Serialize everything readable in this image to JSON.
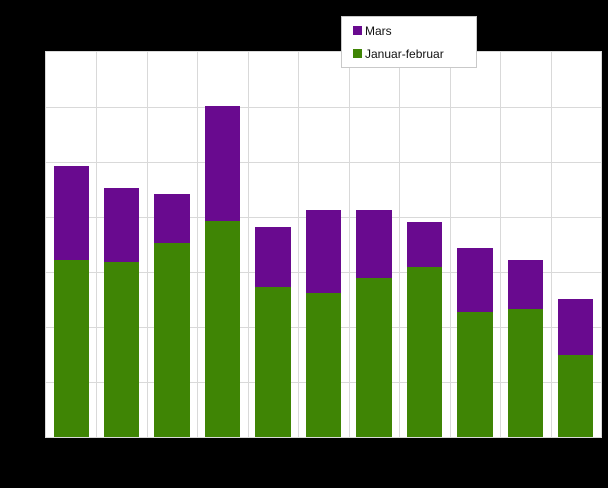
{
  "chart": {
    "background_color": "#000000",
    "plot_background_color": "#ffffff",
    "grid_color": "#d9d9d9",
    "legend": {
      "border_color": "#c9c9c9",
      "items": [
        {
          "label": "Mars",
          "color": "#690a8f"
        },
        {
          "label": "Januar-februar",
          "color": "#3f8505"
        }
      ]
    }
  },
  "chart_data": {
    "type": "bar",
    "stacked": true,
    "title": "",
    "xlabel": "",
    "ylabel": "",
    "categories": [
      "",
      "",
      "",
      "",
      "",
      "",
      "",
      "",
      "",
      "",
      ""
    ],
    "series": [
      {
        "name": "Januar-februar",
        "color": "#3f8505",
        "values": [
          3.21,
          3.18,
          3.52,
          3.93,
          2.72,
          2.61,
          2.9,
          3.1,
          2.28,
          2.32,
          1.5
        ]
      },
      {
        "name": "Mars",
        "color": "#690a8f",
        "values": [
          1.71,
          1.34,
          0.89,
          2.08,
          1.09,
          1.51,
          1.22,
          0.81,
          1.15,
          0.9,
          1.01
        ]
      }
    ],
    "ylim": [
      0,
      7
    ],
    "y_gridline_step": 1,
    "grid": true,
    "axis_tick_labels_visible": false,
    "legend_position": "top-right-inside",
    "note": "No axis tick labels are visible; values are expressed in y-gridline units (1 unit = one horizontal gridline interval)."
  }
}
